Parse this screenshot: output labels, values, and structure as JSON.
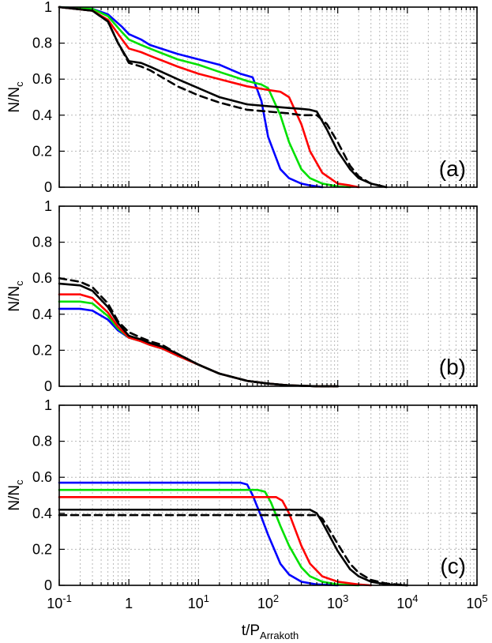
{
  "chart_data": [
    {
      "type": "line",
      "panel_label": "(a)",
      "xlabel": "t/P",
      "xlabel_sub": "Arrakoth",
      "ylabel": "N/N",
      "ylabel_sub": "c",
      "xscale": "log",
      "xlim": [
        0.1,
        100000
      ],
      "ylim": [
        0,
        1
      ],
      "grid": true,
      "series": [
        {
          "color": "#0000ff",
          "dash": "solid",
          "x": [
            0.1,
            0.3,
            0.5,
            0.8,
            1,
            1.5,
            2,
            5,
            10,
            20,
            40,
            60,
            80,
            100,
            150,
            200,
            300,
            400,
            600
          ],
          "y": [
            1.0,
            0.99,
            0.96,
            0.89,
            0.85,
            0.82,
            0.79,
            0.74,
            0.71,
            0.68,
            0.63,
            0.61,
            0.48,
            0.28,
            0.1,
            0.05,
            0.02,
            0.01,
            0.0
          ]
        },
        {
          "color": "#00e000",
          "dash": "solid",
          "x": [
            0.1,
            0.3,
            0.5,
            0.8,
            1,
            1.5,
            2,
            5,
            10,
            20,
            50,
            80,
            100,
            150,
            200,
            300,
            400,
            600,
            1000,
            1500
          ],
          "y": [
            1.0,
            0.99,
            0.95,
            0.86,
            0.82,
            0.79,
            0.77,
            0.71,
            0.68,
            0.64,
            0.59,
            0.57,
            0.55,
            0.4,
            0.25,
            0.1,
            0.05,
            0.02,
            0.005,
            0.0
          ]
        },
        {
          "color": "#ff0000",
          "dash": "solid",
          "x": [
            0.1,
            0.3,
            0.5,
            0.8,
            1,
            1.5,
            2,
            5,
            10,
            20,
            50,
            100,
            150,
            200,
            300,
            400,
            600,
            1000,
            1500,
            2000
          ],
          "y": [
            1.0,
            0.98,
            0.93,
            0.82,
            0.77,
            0.75,
            0.73,
            0.67,
            0.63,
            0.6,
            0.56,
            0.54,
            0.53,
            0.5,
            0.35,
            0.2,
            0.08,
            0.02,
            0.01,
            0.0
          ]
        },
        {
          "color": "#000000",
          "dash": "solid",
          "x": [
            0.1,
            0.3,
            0.5,
            0.7,
            1,
            1.5,
            2,
            5,
            10,
            20,
            50,
            100,
            200,
            300,
            400,
            500,
            700,
            1000,
            1500,
            2000,
            3000,
            5000
          ],
          "y": [
            1.0,
            0.98,
            0.92,
            0.8,
            0.7,
            0.69,
            0.67,
            0.6,
            0.55,
            0.5,
            0.46,
            0.45,
            0.44,
            0.435,
            0.43,
            0.42,
            0.32,
            0.2,
            0.1,
            0.05,
            0.02,
            0.0
          ]
        },
        {
          "color": "#000000",
          "dash": "dashed",
          "x": [
            0.1,
            0.3,
            0.5,
            0.7,
            1,
            1.5,
            2,
            5,
            10,
            20,
            50,
            100,
            200,
            300,
            500,
            700,
            1000,
            1500,
            2000,
            3000,
            5000
          ],
          "y": [
            1.0,
            0.98,
            0.92,
            0.8,
            0.69,
            0.67,
            0.65,
            0.56,
            0.51,
            0.47,
            0.43,
            0.42,
            0.41,
            0.4,
            0.4,
            0.35,
            0.25,
            0.12,
            0.06,
            0.02,
            0.0
          ]
        }
      ]
    },
    {
      "type": "line",
      "panel_label": "(b)",
      "xlabel": "t/P",
      "xlabel_sub": "Arrakoth",
      "ylabel": "N/N",
      "ylabel_sub": "c",
      "xscale": "log",
      "xlim": [
        0.1,
        100000
      ],
      "ylim": [
        0,
        1
      ],
      "grid": true,
      "series": [
        {
          "color": "#0000ff",
          "dash": "solid",
          "x": [
            0.1,
            0.2,
            0.3,
            0.5,
            0.7,
            1,
            1.5,
            2,
            3,
            5,
            10,
            20,
            50,
            100,
            200,
            500,
            1000
          ],
          "y": [
            0.43,
            0.43,
            0.42,
            0.37,
            0.31,
            0.27,
            0.25,
            0.23,
            0.21,
            0.17,
            0.12,
            0.07,
            0.03,
            0.015,
            0.005,
            0.0,
            0.0
          ]
        },
        {
          "color": "#00e000",
          "dash": "solid",
          "x": [
            0.1,
            0.2,
            0.3,
            0.5,
            0.7,
            1,
            1.5,
            2,
            3,
            5,
            10,
            20,
            50,
            100,
            200,
            500,
            1000
          ],
          "y": [
            0.47,
            0.47,
            0.46,
            0.39,
            0.32,
            0.27,
            0.25,
            0.23,
            0.21,
            0.17,
            0.12,
            0.07,
            0.03,
            0.015,
            0.005,
            0.0,
            0.0
          ]
        },
        {
          "color": "#ff0000",
          "dash": "solid",
          "x": [
            0.1,
            0.2,
            0.3,
            0.5,
            0.7,
            1,
            1.5,
            2,
            3,
            5,
            10,
            20,
            50,
            100,
            200,
            500,
            1000
          ],
          "y": [
            0.51,
            0.51,
            0.49,
            0.41,
            0.33,
            0.27,
            0.25,
            0.23,
            0.21,
            0.17,
            0.12,
            0.07,
            0.03,
            0.015,
            0.005,
            0.0,
            0.0
          ]
        },
        {
          "color": "#000000",
          "dash": "solid",
          "x": [
            0.1,
            0.2,
            0.3,
            0.5,
            0.7,
            1,
            1.5,
            2,
            3,
            5,
            10,
            20,
            50,
            100,
            200,
            500,
            1000
          ],
          "y": [
            0.57,
            0.56,
            0.53,
            0.44,
            0.35,
            0.28,
            0.26,
            0.24,
            0.22,
            0.18,
            0.12,
            0.07,
            0.03,
            0.015,
            0.005,
            0.0,
            0.0
          ]
        },
        {
          "color": "#000000",
          "dash": "dashed",
          "x": [
            0.1,
            0.2,
            0.3,
            0.5,
            0.7,
            1,
            1.5,
            2,
            3,
            5,
            10,
            20,
            50,
            100,
            200,
            500,
            1000
          ],
          "y": [
            0.6,
            0.58,
            0.55,
            0.46,
            0.36,
            0.3,
            0.27,
            0.25,
            0.23,
            0.18,
            0.12,
            0.07,
            0.03,
            0.015,
            0.005,
            0.0,
            0.0
          ]
        }
      ]
    },
    {
      "type": "line",
      "panel_label": "(c)",
      "xlabel": "t/P",
      "xlabel_sub": "Arrakoth",
      "ylabel": "N/N",
      "ylabel_sub": "c",
      "xscale": "log",
      "xlim": [
        0.1,
        100000
      ],
      "ylim": [
        0,
        1
      ],
      "grid": true,
      "series": [
        {
          "color": "#0000ff",
          "dash": "solid",
          "x": [
            0.1,
            1,
            10,
            40,
            50,
            60,
            80,
            100,
            150,
            200,
            300,
            500,
            1000
          ],
          "y": [
            0.57,
            0.57,
            0.57,
            0.57,
            0.56,
            0.5,
            0.38,
            0.28,
            0.12,
            0.06,
            0.02,
            0.005,
            0.0
          ]
        },
        {
          "color": "#00e000",
          "dash": "solid",
          "x": [
            0.1,
            1,
            10,
            70,
            90,
            110,
            150,
            200,
            300,
            400,
            600,
            1000,
            2000
          ],
          "y": [
            0.53,
            0.53,
            0.53,
            0.53,
            0.52,
            0.46,
            0.33,
            0.22,
            0.1,
            0.05,
            0.02,
            0.005,
            0.0
          ]
        },
        {
          "color": "#ff0000",
          "dash": "solid",
          "x": [
            0.1,
            1,
            10,
            100,
            130,
            160,
            200,
            300,
            400,
            600,
            1000,
            2000,
            3000
          ],
          "y": [
            0.49,
            0.49,
            0.49,
            0.49,
            0.49,
            0.47,
            0.4,
            0.22,
            0.12,
            0.05,
            0.02,
            0.005,
            0.0
          ]
        },
        {
          "color": "#000000",
          "dash": "solid",
          "x": [
            0.1,
            1,
            10,
            100,
            300,
            400,
            500,
            600,
            800,
            1000,
            1500,
            2000,
            3000,
            5000,
            10000
          ],
          "y": [
            0.42,
            0.42,
            0.42,
            0.42,
            0.42,
            0.42,
            0.4,
            0.35,
            0.26,
            0.19,
            0.09,
            0.05,
            0.02,
            0.005,
            0.0
          ]
        },
        {
          "color": "#000000",
          "dash": "dashed",
          "x": [
            0.1,
            1,
            10,
            100,
            300,
            500,
            600,
            700,
            1000,
            1500,
            2000,
            3000,
            5000,
            10000
          ],
          "y": [
            0.39,
            0.39,
            0.39,
            0.39,
            0.39,
            0.39,
            0.37,
            0.33,
            0.23,
            0.12,
            0.07,
            0.03,
            0.01,
            0.0
          ]
        }
      ]
    }
  ],
  "axis": {
    "y_ticks": [
      "0",
      "0.2",
      "0.4",
      "0.6",
      "0.8",
      "1"
    ],
    "y_tick_values": [
      0,
      0.2,
      0.4,
      0.6,
      0.8,
      1
    ],
    "x_ticks": [
      {
        "value": 0.1,
        "base": "10",
        "exp": "-1"
      },
      {
        "value": 1,
        "base": "1",
        "exp": ""
      },
      {
        "value": 10,
        "base": "10",
        "exp": "1"
      },
      {
        "value": 100,
        "base": "10",
        "exp": "2"
      },
      {
        "value": 1000,
        "base": "10",
        "exp": "3"
      },
      {
        "value": 10000,
        "base": "10",
        "exp": "4"
      },
      {
        "value": 100000,
        "base": "10",
        "exp": "5"
      }
    ]
  }
}
